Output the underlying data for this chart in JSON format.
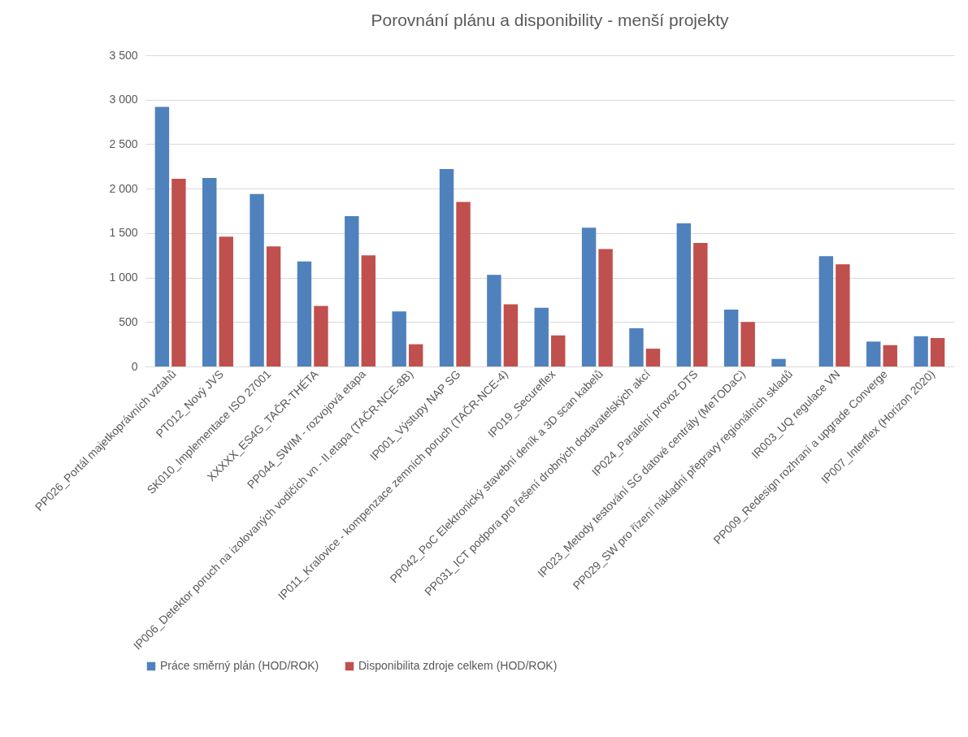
{
  "chart_data": {
    "type": "bar",
    "title": "Porovnání plánu a disponibility - menší projekty",
    "categories": [
      "PP026_Portál majetkoprávních vztahů",
      "PT012_Nový JVS",
      "SK010_Implementace ISO 27001",
      "XXXXX_ES4G_TAČR-THÉTA",
      "PP044_SWIM - rozvojová etapa",
      "IP006_Detektor poruch na izolovaných vodičích vn - II.etapa (TAČR-NCE-8B)",
      "IP001_Výstupy NAP SG",
      "IP011_Kralovice - kompenzace zemních poruch (TAČR-NCE-4)",
      "IP019_Secureflex",
      "PP042_PoC Elektronický stavební deník a 3D scan kabelů",
      "PP031_ICT podpora pro řešení drobných dodavatelských akcí",
      "IP024_Paralelní provoz DTS",
      "IP023_Metody testování SG datové centrály (MeTODaC)",
      "PP029_SW pro řízení nákladní přepravy regionálních skladů",
      "IR003_UQ regulace VN",
      "PP009_Redesign rozhraní a upgrade Converge",
      "IP007_Interflex (Horizon 2020)"
    ],
    "series": [
      {
        "name": "Práce směrný plán (HOD/ROK)",
        "color": "#4f81bd",
        "values": [
          2920,
          2120,
          1940,
          1180,
          1690,
          620,
          2220,
          1030,
          660,
          1560,
          430,
          1610,
          640,
          85,
          1240,
          280,
          340
        ]
      },
      {
        "name": "Disponibilita zdroje celkem (HOD/ROK)",
        "color": "#c0504d",
        "values": [
          2110,
          1460,
          1350,
          680,
          1250,
          250,
          1850,
          700,
          350,
          1320,
          200,
          1390,
          500,
          0,
          1150,
          240,
          320
        ]
      }
    ],
    "ylim": [
      0,
      3500
    ],
    "yticks": [
      {
        "value": 0,
        "label": "0"
      },
      {
        "value": 500,
        "label": "500"
      },
      {
        "value": 1000,
        "label": "1 000"
      },
      {
        "value": 1500,
        "label": "1 500"
      },
      {
        "value": 2000,
        "label": "2 000"
      },
      {
        "value": 2500,
        "label": "2 500"
      },
      {
        "value": 3000,
        "label": "3 000"
      },
      {
        "value": 3500,
        "label": "3 500"
      }
    ],
    "grid": "y",
    "legend": "bottom"
  }
}
